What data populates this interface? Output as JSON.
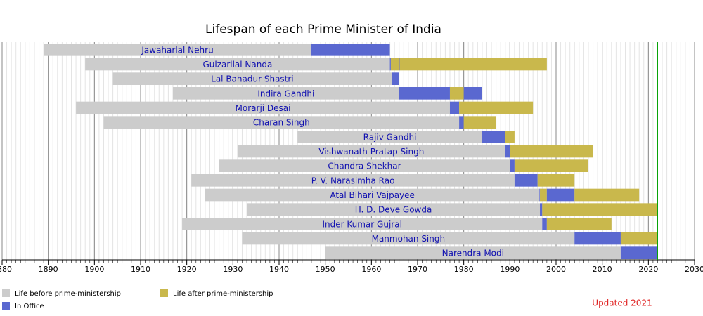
{
  "chart_data": {
    "type": "timeline",
    "title": "Lifespan of each Prime Minister of India",
    "annotation": "Updated 2021",
    "xlim": [
      1880,
      2030
    ],
    "xticks": [
      1880,
      1890,
      1900,
      1910,
      1920,
      1930,
      1940,
      1950,
      1960,
      1970,
      1980,
      1990,
      2000,
      2010,
      2020,
      2030
    ],
    "minor_step": 1,
    "now": 2022,
    "legend": [
      {
        "name": "Life before prime-ministership",
        "color": "#cccccc"
      },
      {
        "name": "In Office",
        "color": "#5a68d0"
      },
      {
        "name": "Life after prime-ministership",
        "color": "#c9b84c"
      }
    ],
    "rows": [
      {
        "name": "Jawaharlal Nehru",
        "born": 1889,
        "terms": [
          [
            1947,
            1964
          ]
        ],
        "end": 1964
      },
      {
        "name": "Gulzarilal Nanda",
        "born": 1898,
        "terms": [
          [
            1964,
            1964.2
          ],
          [
            1966,
            1966.1
          ]
        ],
        "end": 1998
      },
      {
        "name": "Lal Bahadur Shastri",
        "born": 1904,
        "terms": [
          [
            1964.4,
            1966
          ]
        ],
        "end": 1966
      },
      {
        "name": "Indira Gandhi",
        "born": 1917,
        "terms": [
          [
            1966,
            1977
          ],
          [
            1980,
            1984
          ]
        ],
        "end": 1984
      },
      {
        "name": "Morarji Desai",
        "born": 1896,
        "terms": [
          [
            1977,
            1979
          ]
        ],
        "end": 1995
      },
      {
        "name": "Charan Singh",
        "born": 1902,
        "terms": [
          [
            1979,
            1980
          ]
        ],
        "end": 1987
      },
      {
        "name": "Rajiv Gandhi",
        "born": 1944,
        "terms": [
          [
            1984,
            1989
          ]
        ],
        "end": 1991
      },
      {
        "name": "Vishwanath Pratap Singh",
        "born": 1931,
        "terms": [
          [
            1989,
            1990
          ]
        ],
        "end": 2008
      },
      {
        "name": "Chandra Shekhar",
        "born": 1927,
        "terms": [
          [
            1990,
            1991
          ]
        ],
        "end": 2007
      },
      {
        "name": "P. V. Narasimha Rao",
        "born": 1921,
        "terms": [
          [
            1991,
            1996
          ]
        ],
        "end": 2004
      },
      {
        "name": "Atal Bihari Vajpayee",
        "born": 1924,
        "terms": [
          [
            1996.4,
            1996.5
          ],
          [
            1998,
            2004
          ]
        ],
        "end": 2018
      },
      {
        "name": "H. D. Deve Gowda",
        "born": 1933,
        "terms": [
          [
            1996.5,
            1997
          ]
        ],
        "end": 2022
      },
      {
        "name": "Inder Kumar Gujral",
        "born": 1919,
        "terms": [
          [
            1997,
            1998
          ]
        ],
        "end": 2012
      },
      {
        "name": "Manmohan Singh",
        "born": 1932,
        "terms": [
          [
            2004,
            2014
          ]
        ],
        "end": 2022
      },
      {
        "name": "Narendra Modi",
        "born": 1950,
        "terms": [
          [
            2014,
            2022
          ]
        ],
        "end": 2022
      }
    ]
  }
}
